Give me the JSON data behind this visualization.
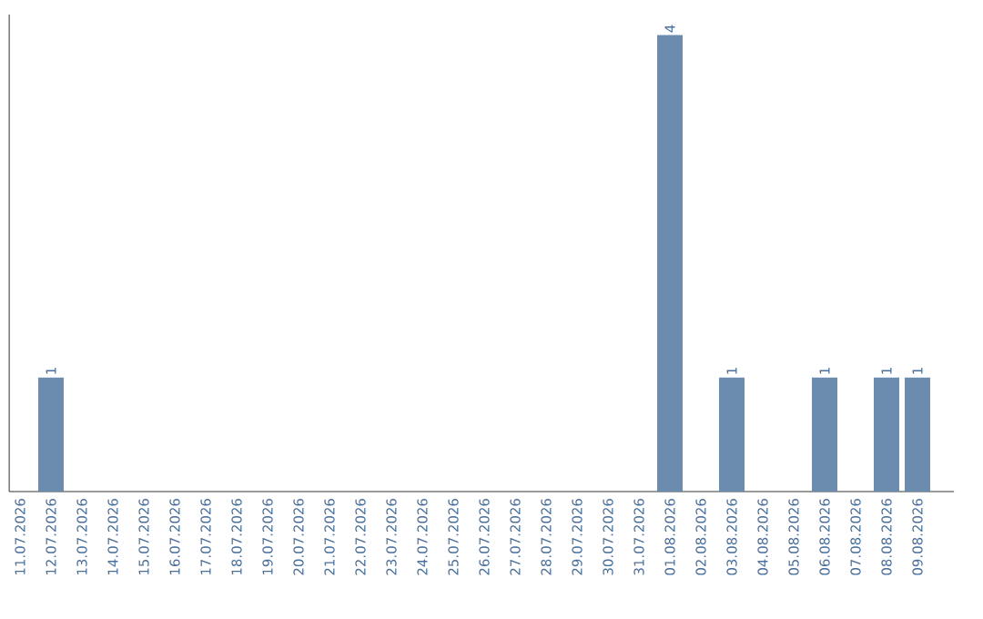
{
  "chart_data": {
    "type": "bar",
    "categories": [
      "11.07.2026",
      "12.07.2026",
      "13.07.2026",
      "14.07.2026",
      "15.07.2026",
      "16.07.2026",
      "17.07.2026",
      "18.07.2026",
      "19.07.2026",
      "20.07.2026",
      "21.07.2026",
      "22.07.2026",
      "23.07.2026",
      "24.07.2026",
      "25.07.2026",
      "26.07.2026",
      "27.07.2026",
      "28.07.2026",
      "29.07.2026",
      "30.07.2026",
      "31.07.2026",
      "01.08.2026",
      "02.08.2026",
      "03.08.2026",
      "04.08.2026",
      "05.08.2026",
      "06.08.2026",
      "07.08.2026",
      "08.08.2026",
      "09.08.2026"
    ],
    "values": [
      0,
      1,
      0,
      0,
      0,
      0,
      0,
      0,
      0,
      0,
      0,
      0,
      0,
      0,
      0,
      0,
      0,
      0,
      0,
      0,
      0,
      4,
      0,
      1,
      0,
      0,
      1,
      0,
      1,
      1
    ],
    "value_labels": [
      null,
      "1",
      null,
      null,
      null,
      null,
      null,
      null,
      null,
      null,
      null,
      null,
      null,
      null,
      null,
      null,
      null,
      null,
      null,
      null,
      null,
      "4",
      null,
      "1",
      null,
      null,
      "1",
      null,
      "1",
      "1"
    ],
    "color": "#6b8cae"
  }
}
